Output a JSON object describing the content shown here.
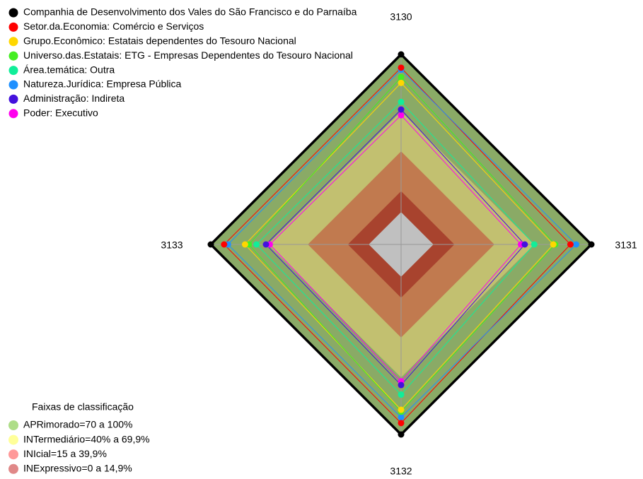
{
  "chart_data": {
    "type": "radar",
    "axes": [
      "3130",
      "3131",
      "3132",
      "3133"
    ],
    "rlim": [
      0,
      100
    ],
    "bands": [
      {
        "to": 100,
        "color": "#8aaa66"
      },
      {
        "to": 70,
        "color": "#c2c070"
      },
      {
        "to": 49,
        "color": "#c17a4f"
      },
      {
        "to": 28,
        "color": "#a8432e"
      },
      {
        "to": 17,
        "color": "#c0c0c0"
      }
    ],
    "series": [
      {
        "name": "Companhia de Desenvolvimento dos Vales do São Francisco e do Parnaíba",
        "color": "#000000",
        "values": [
          100,
          100,
          100,
          100
        ]
      },
      {
        "name": "Setor.da.Economia: Comércio e Serviços",
        "color": "#ff0000",
        "values": [
          93,
          89,
          94,
          93
        ]
      },
      {
        "name": "Grupo.Econômico: Estatais dependentes do Tesouro Nacional",
        "color": "#ffd700",
        "values": [
          85,
          80,
          87,
          82
        ]
      },
      {
        "name": "Universo.das.Estatais: ETG - Empresas Dependentes do Tesouro Nacional",
        "color": "#44ee22",
        "values": [
          88,
          81,
          88,
          80
        ]
      },
      {
        "name": "Área.temática: Outra",
        "color": "#11ee99",
        "values": [
          75,
          70,
          79,
          76
        ]
      },
      {
        "name": "Natureza.Jurídica: Empresa Pública",
        "color": "#1e90ff",
        "values": [
          92,
          92,
          91,
          91
        ]
      },
      {
        "name": "Administração: Indireta",
        "color": "#4411dd",
        "values": [
          71,
          65,
          74,
          71
        ]
      },
      {
        "name": "Poder: Executivo",
        "color": "#ff00ee",
        "values": [
          68,
          63,
          72,
          69
        ]
      }
    ],
    "class_legend": {
      "title": "Faixas de classificação",
      "items": [
        {
          "label": "APRimorado=70 a 100%",
          "color": "#aedd88"
        },
        {
          "label": "INTermediário=40% a 69,9%",
          "color": "#ffff99"
        },
        {
          "label": "INIcial=15 a 39,9%",
          "color": "#ff9999"
        },
        {
          "label": "INExpressivo=0 a 14,9%",
          "color": "#e08888"
        }
      ]
    }
  }
}
